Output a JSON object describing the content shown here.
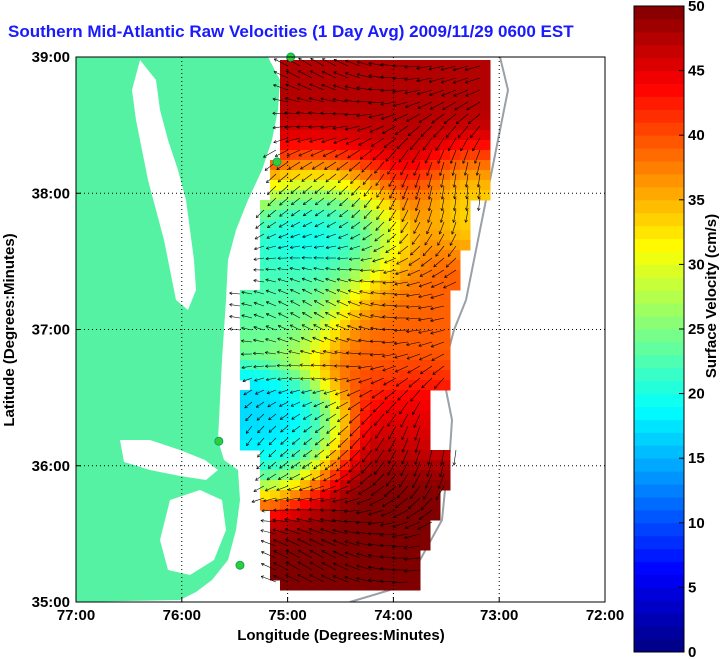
{
  "title": "Southern Mid-Atlantic Raw Velocities (1 Day Avg) 2009/11/29 0600 EST",
  "map": {
    "xlabel": "Longitude (Degrees:Minutes)",
    "ylabel": "Latitude (Degrees:Minutes)",
    "lon_range": [
      -77,
      -72
    ],
    "lat_range": [
      35,
      39
    ],
    "x_ticks": [
      "77:00",
      "76:00",
      "75:00",
      "74:00",
      "73:00",
      "72:00"
    ],
    "y_ticks": [
      "35:00",
      "36:00",
      "37:00",
      "38:00",
      "39:00"
    ],
    "land_color": "#55f2a3",
    "water_color": "#ffffff",
    "grid": "dotted",
    "stations": [
      {
        "lon": -74.97,
        "lat": 39.0
      },
      {
        "lon": -75.1,
        "lat": 38.23
      },
      {
        "lon": -75.65,
        "lat": 36.18
      },
      {
        "lon": -75.45,
        "lat": 35.27
      }
    ]
  },
  "colorbar": {
    "label": "Surface Velocity (cm/s)",
    "min": 0,
    "max": 50,
    "ticks": [
      "0",
      "5",
      "10",
      "15",
      "20",
      "25",
      "30",
      "35",
      "40",
      "45",
      "50"
    ],
    "colormap": "jet"
  }
}
